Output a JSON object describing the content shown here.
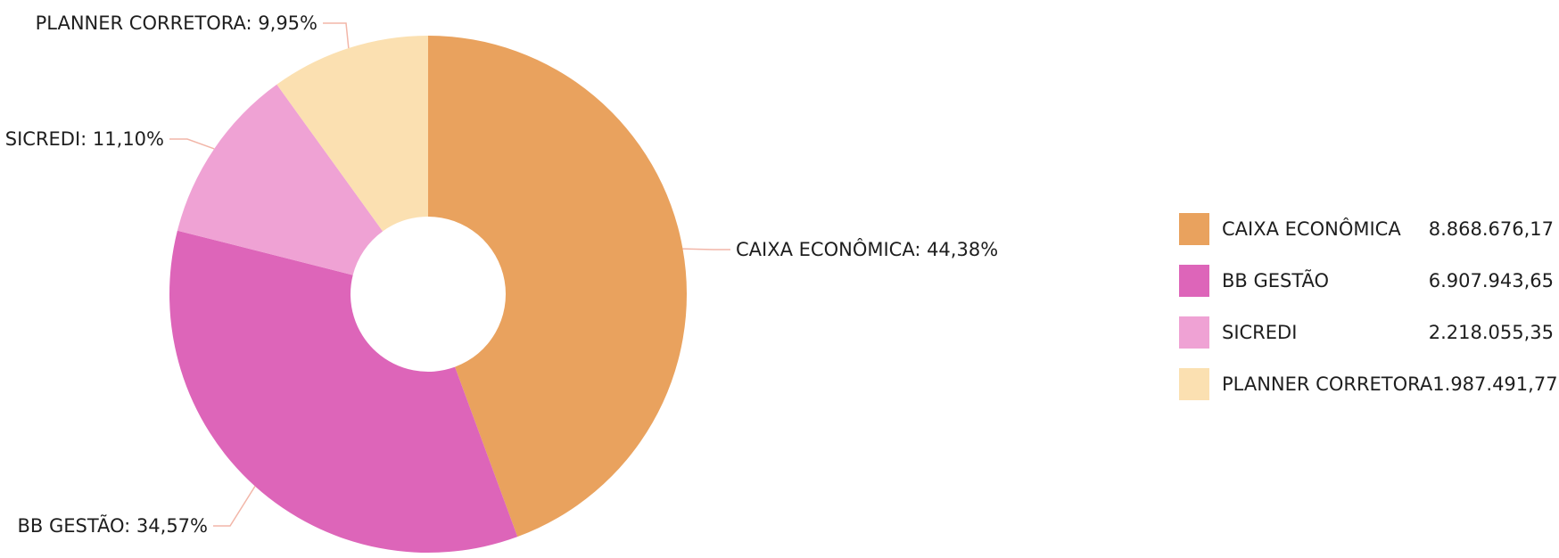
{
  "chart_data": {
    "type": "pie",
    "variant": "donut",
    "categories": [
      "CAIXA ECONÔMICA",
      "BB GESTÃO",
      "SICREDI",
      "PLANNER CORRETORA"
    ],
    "values": [
      8868676.17,
      6907943.65,
      2218055.35,
      1987491.77
    ],
    "value_labels": [
      "8.868.676,17",
      "6.907.943,65",
      "2.218.055,35",
      "1.987.491,77"
    ],
    "percent_labels": [
      "44,38%",
      "34,57%",
      "11,10%",
      "9,95%"
    ],
    "colors": [
      "#e9a25e",
      "#dd65b9",
      "#efa2d4",
      "#fbe0b1"
    ],
    "legend_position": "right"
  }
}
